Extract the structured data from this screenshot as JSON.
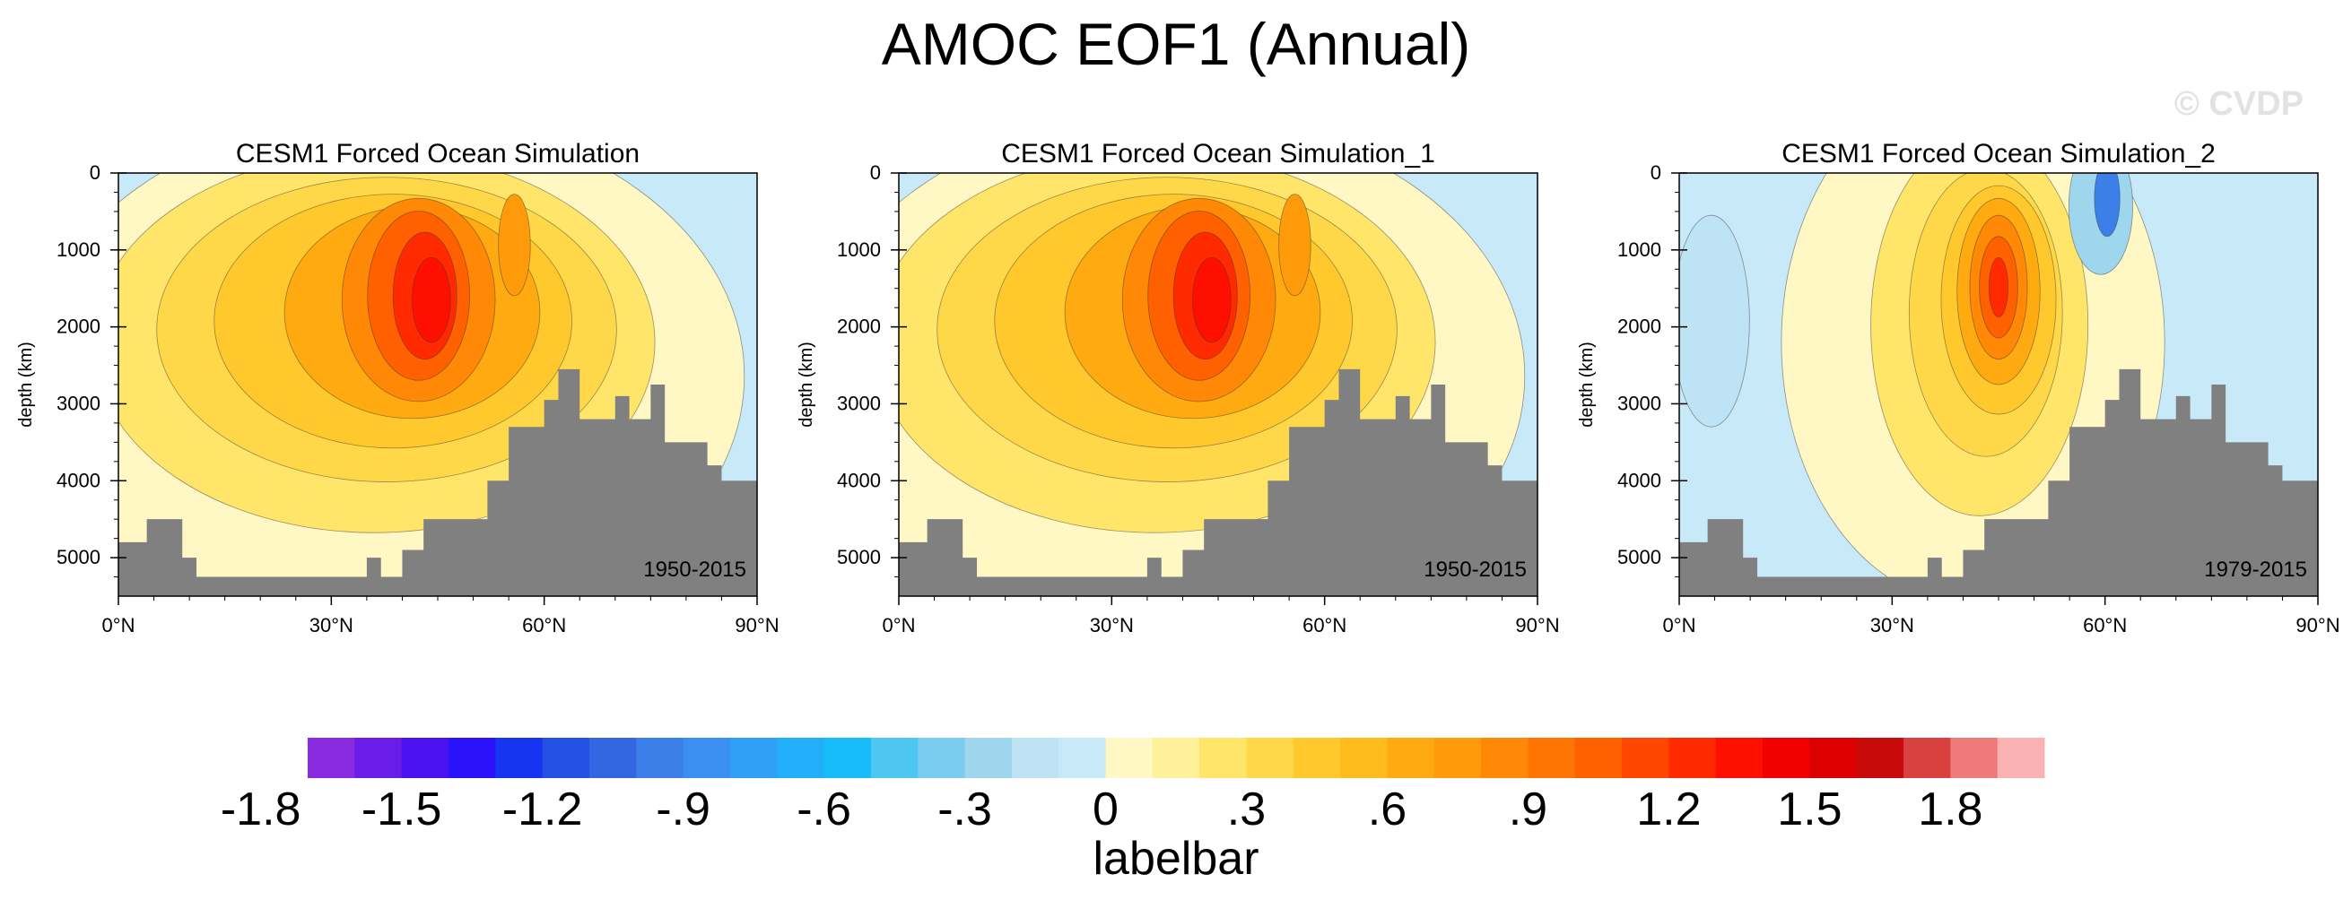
{
  "chart_data": {
    "type": "contour",
    "title": "AMOC EOF1 (Annual)",
    "watermark": "© CVDP",
    "panels": [
      {
        "title": "CESM1 Forced Ocean Simulation",
        "period": "1950-2015",
        "ylabel": "depth (km)",
        "yticks": [
          "0",
          "1000",
          "2000",
          "3000",
          "4000",
          "5000"
        ],
        "xticks": [
          "0°N",
          "30°N",
          "60°N",
          "90°N"
        ],
        "xlim": [
          0,
          90
        ],
        "ylim": [
          5500,
          0
        ]
      },
      {
        "title": "CESM1 Forced Ocean Simulation_1",
        "period": "1950-2015",
        "ylabel": "depth (km)",
        "yticks": [
          "0",
          "1000",
          "2000",
          "3000",
          "4000",
          "5000"
        ],
        "xticks": [
          "0°N",
          "30°N",
          "60°N",
          "90°N"
        ],
        "xlim": [
          0,
          90
        ],
        "ylim": [
          5500,
          0
        ]
      },
      {
        "title": "CESM1 Forced Ocean Simulation_2",
        "period": "1979-2015",
        "ylabel": "depth (km)",
        "yticks": [
          "0",
          "1000",
          "2000",
          "3000",
          "4000",
          "5000"
        ],
        "xticks": [
          "0°N",
          "30°N",
          "60°N",
          "90°N"
        ],
        "xlim": [
          0,
          90
        ],
        "ylim": [
          5500,
          0
        ]
      }
    ],
    "colorbar": {
      "title": "labelbar",
      "labels": [
        "-1.8",
        "-1.5",
        "-1.2",
        "-.9",
        "-.6",
        "-.3",
        "0",
        ".3",
        ".6",
        ".9",
        "1.2",
        "1.5",
        "1.8"
      ],
      "colors": [
        "#8a2be2",
        "#6a1de8",
        "#4a12f0",
        "#2a12fa",
        "#1535f0",
        "#2450e6",
        "#3366e0",
        "#3d7fe8",
        "#3a8ff0",
        "#2f9ff5",
        "#22aef8",
        "#18bcf8",
        "#4ec6f2",
        "#7acdee",
        "#9ed6ee",
        "#bde3f4",
        "#c8e9f8",
        "#fff7c4",
        "#fff09a",
        "#ffe66a",
        "#ffd84a",
        "#ffc92e",
        "#ffbb1c",
        "#ffaa10",
        "#ff9a0a",
        "#ff8806",
        "#ff7503",
        "#ff6000",
        "#ff4500",
        "#ff2a00",
        "#ff0f00",
        "#f20000",
        "#dd0000",
        "#c80a0a",
        "#d94040",
        "#ee7a7a",
        "#fbb2b2"
      ]
    }
  }
}
